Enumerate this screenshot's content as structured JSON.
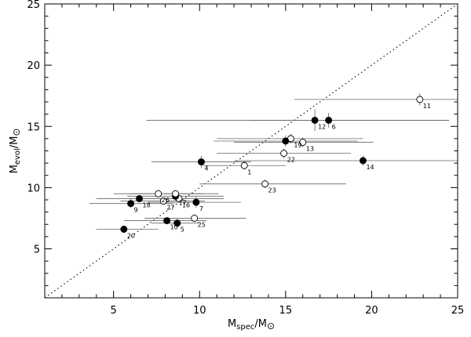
{
  "chart_data": {
    "type": "scatter",
    "xlabel": {
      "main": "M",
      "sub": "spec",
      "tail": "/M",
      "symbol": "⊙"
    },
    "ylabel": {
      "main": "M",
      "sub": "evol",
      "tail": "/M",
      "symbol": "⊙"
    },
    "xlim": [
      1,
      25
    ],
    "ylim": [
      1,
      25
    ],
    "x_ticks": [
      5,
      10,
      15,
      20,
      25
    ],
    "y_ticks": [
      5,
      10,
      15,
      20,
      25
    ],
    "grid": false,
    "reference_line": {
      "style": "dotted",
      "from": [
        1,
        1
      ],
      "to": [
        25,
        25
      ]
    },
    "points": [
      {
        "label": "1",
        "x": 12.6,
        "y": 11.8,
        "filled": false,
        "xerr": [
          10.2,
          15.0
        ],
        "yerr": 0.35
      },
      {
        "label": "4",
        "x": 10.1,
        "y": 12.1,
        "filled": true,
        "xerr": [
          7.2,
          13.0
        ],
        "yerr": 0.5
      },
      {
        "label": "5",
        "x": 8.7,
        "y": 7.1,
        "filled": true,
        "xerr": [
          7.2,
          10.0
        ],
        "yerr": 0.35
      },
      {
        "label": "6",
        "x": 17.5,
        "y": 15.5,
        "filled": true,
        "xerr": [
          13.0,
          24.5
        ],
        "yerr": 0.6
      },
      {
        "label": "7",
        "x": 9.8,
        "y": 8.8,
        "filled": true,
        "xerr": [
          7.0,
          12.4
        ],
        "yerr": 0.45
      },
      {
        "label": "9",
        "x": 6.0,
        "y": 8.7,
        "filled": true,
        "xerr": [
          3.6,
          8.5
        ],
        "yerr": 0.35
      },
      {
        "label": "10",
        "x": 8.1,
        "y": 7.3,
        "filled": true,
        "xerr": [
          5.6,
          10.4
        ],
        "yerr": 0.3
      },
      {
        "label": "11",
        "x": 22.8,
        "y": 17.2,
        "filled": false,
        "xerr": [
          15.5,
          25.0
        ],
        "yerr": 0.5
      },
      {
        "label": "12",
        "x": 16.7,
        "y": 15.5,
        "filled": true,
        "xerr": [
          6.9,
          24.5
        ],
        "yerr": 0.9
      },
      {
        "label": "13",
        "x": 16.0,
        "y": 13.7,
        "filled": false,
        "xerr": [
          12.0,
          20.1
        ],
        "yerr": 0.4
      },
      {
        "label": "14",
        "x": 19.5,
        "y": 12.2,
        "filled": true,
        "xerr": [
          12.0,
          25.0
        ],
        "yerr": 0.4
      },
      {
        "label": "16",
        "x": 8.8,
        "y": 9.1,
        "filled": false,
        "xerr": [
          5.8,
          11.4
        ],
        "yerr": 0.3
      },
      {
        "label": "17",
        "x": 8.6,
        "y": 9.3,
        "filled": true,
        "xerr": [
          5.8,
          11.4
        ],
        "yerr": 0.35
      },
      {
        "label": "18",
        "x": 6.5,
        "y": 9.1,
        "filled": true,
        "xerr": [
          4.0,
          9.0
        ],
        "yerr": 0.3
      },
      {
        "label": "19",
        "x": 15.3,
        "y": 14.0,
        "filled": false,
        "xerr": [
          11.0,
          19.5
        ],
        "yerr": 0.4
      },
      {
        "label": "20",
        "x": 5.6,
        "y": 6.6,
        "filled": true,
        "xerr": [
          4.0,
          7.6
        ],
        "yerr": 0.3
      },
      {
        "label": "22",
        "x": 14.9,
        "y": 12.8,
        "filled": false,
        "xerr": [
          11.0,
          18.8
        ],
        "yerr": 0.4
      },
      {
        "label": "23",
        "x": 13.8,
        "y": 10.3,
        "filled": false,
        "xerr": [
          10.0,
          18.5
        ],
        "yerr": 0.35
      },
      {
        "label": "25",
        "x": 9.7,
        "y": 7.5,
        "filled": false,
        "xerr": [
          6.8,
          12.7
        ],
        "yerr": 0.3
      },
      {
        "label": "26",
        "x": 7.6,
        "y": 9.5,
        "filled": false,
        "xerr": [
          5.0,
          10.2
        ],
        "yerr": 0.3
      },
      {
        "label": "27",
        "x": 7.9,
        "y": 8.9,
        "filled": false,
        "xerr": [
          5.4,
          10.3
        ],
        "yerr": 0.3
      },
      {
        "label": "",
        "x": 8.6,
        "y": 9.5,
        "filled": false,
        "xerr": [
          5.9,
          11.1
        ],
        "yerr": 0.3
      },
      {
        "label": "",
        "x": 15.0,
        "y": 13.8,
        "filled": true,
        "xerr": [
          10.8,
          19.2
        ],
        "yerr": 0.45
      }
    ]
  }
}
